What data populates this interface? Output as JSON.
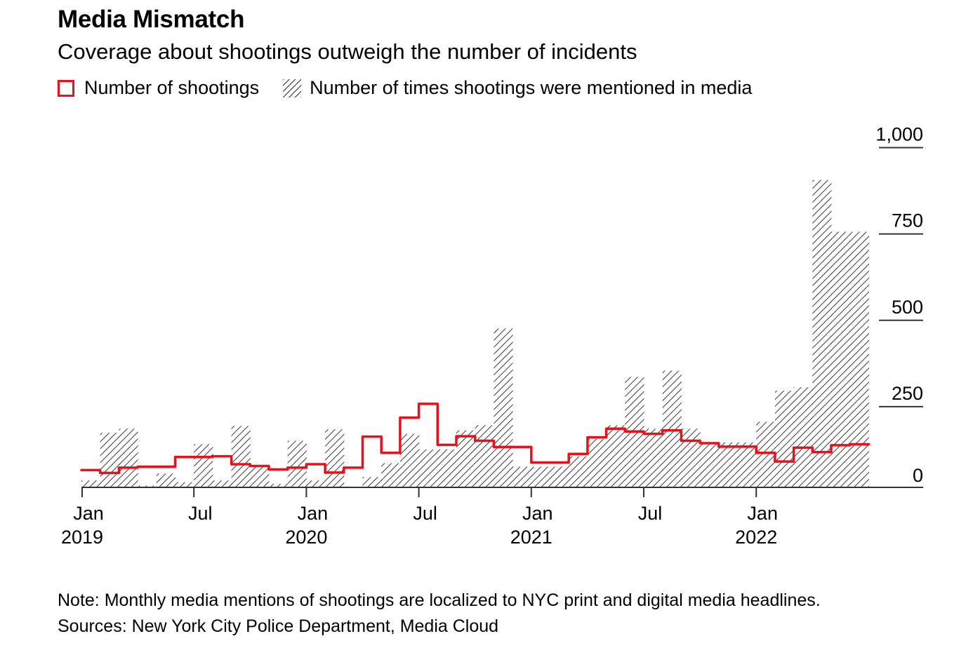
{
  "header": {
    "title": "Media Mismatch",
    "subtitle": "Coverage about shootings outweigh the number of incidents"
  },
  "legend": {
    "shootings_label": "Number of shootings",
    "mentions_label": "Number of times shootings were mentioned in media"
  },
  "footer": {
    "note": "Note: Monthly media mentions of shootings are localized to NYC print and digital media headlines.",
    "sources": "Sources: New York City Police Department, Media Cloud"
  },
  "colors": {
    "shootings": "#e8101a",
    "hatch": "#222222",
    "axis": "#333333"
  },
  "chart_data": {
    "type": "area",
    "x_start": "2019-01",
    "months": 42,
    "y_ticks": [
      "0",
      "250",
      "500",
      "750",
      "1,000"
    ],
    "ylim": [
      0,
      1000
    ],
    "y_axis_position": "right",
    "x_tick_labels": [
      {
        "month": 0,
        "label": "Jan",
        "year": "2019"
      },
      {
        "month": 6,
        "label": "Jul",
        "year": ""
      },
      {
        "month": 12,
        "label": "Jan",
        "year": "2020"
      },
      {
        "month": 18,
        "label": "Jul",
        "year": ""
      },
      {
        "month": 24,
        "label": "Jan",
        "year": "2021"
      },
      {
        "month": 30,
        "label": "Jul",
        "year": ""
      },
      {
        "month": 36,
        "label": "Jan",
        "year": "2022"
      }
    ],
    "series": [
      {
        "name": "Number of shootings",
        "style": "step-line",
        "values": [
          50,
          42,
          57,
          60,
          60,
          88,
          88,
          90,
          67,
          62,
          52,
          57,
          67,
          43,
          57,
          147,
          100,
          202,
          242,
          123,
          148,
          135,
          117,
          117,
          72,
          72,
          97,
          145,
          170,
          162,
          155,
          165,
          135,
          128,
          118,
          118,
          100,
          75,
          115,
          102,
          122,
          125
        ]
      },
      {
        "name": "Number of times shootings were mentioned in media",
        "style": "hatched-step-area",
        "values": [
          20,
          158,
          170,
          5,
          40,
          15,
          125,
          20,
          178,
          65,
          10,
          135,
          20,
          168,
          0,
          30,
          70,
          155,
          110,
          110,
          165,
          180,
          460,
          60,
          60,
          60,
          90,
          140,
          180,
          320,
          170,
          338,
          170,
          125,
          130,
          130,
          190,
          280,
          290,
          890,
          740,
          740
        ]
      }
    ]
  }
}
